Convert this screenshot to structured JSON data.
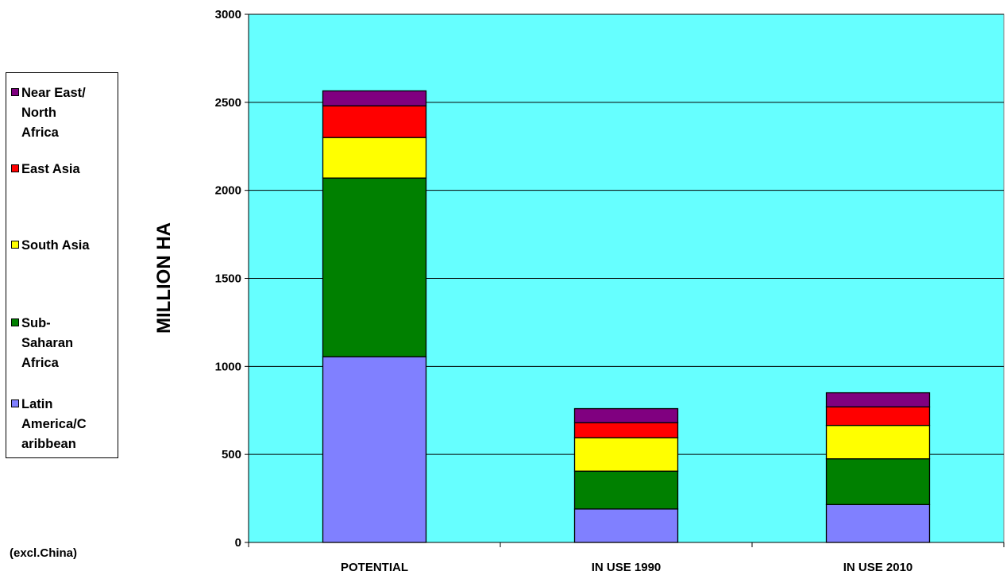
{
  "chart_data": {
    "type": "bar",
    "stacked": true,
    "categories": [
      "POTENTIAL",
      "IN USE 1990",
      "IN USE 2010"
    ],
    "series": [
      {
        "name": "Latin America/Caribbean",
        "color": "#8080ff",
        "values": [
          1055,
          190,
          215
        ]
      },
      {
        "name": "Sub-Saharan Africa",
        "color": "#008000",
        "values": [
          1015,
          215,
          260
        ]
      },
      {
        "name": "South Asia",
        "color": "#ffff00",
        "values": [
          230,
          190,
          190
        ]
      },
      {
        "name": "East Asia",
        "color": "#ff0000",
        "values": [
          180,
          85,
          105
        ]
      },
      {
        "name": "Near East/ North Africa",
        "color": "#800080",
        "values": [
          85,
          80,
          80
        ]
      }
    ],
    "title": "",
    "xlabel": "",
    "ylabel": "MILLION HA",
    "ylim": [
      0,
      3000
    ],
    "yticks": [
      0,
      500,
      1000,
      1500,
      2000,
      2500,
      3000
    ],
    "grid": true,
    "plot_background": "#66ffff",
    "legend_position": "left",
    "legend_entries": [
      {
        "label": "Near East/\nNorth\nAfrica",
        "color": "#800080"
      },
      {
        "label": "East Asia",
        "color": "#ff0000"
      },
      {
        "label": "South Asia",
        "color": "#ffff00"
      },
      {
        "label": "Sub-\nSaharan\nAfrica",
        "color": "#008000"
      },
      {
        "label": "Latin\nAmerica/C\naribbean",
        "color": "#8080ff"
      }
    ],
    "annotation": "(excl.China)"
  }
}
